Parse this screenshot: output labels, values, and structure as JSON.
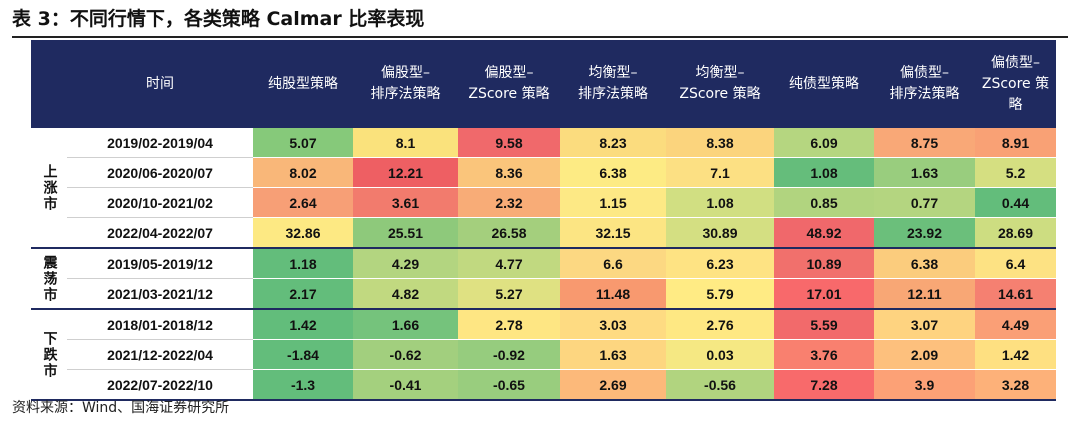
{
  "title": "表 3：不同行情下，各类策略 Calmar 比率表现",
  "source": "资料来源：Wind、国海证券研究所",
  "headers": [
    "时间",
    "纯股型策略",
    "偏股型–\n排序法策略",
    "偏股型–\nZScore 策略",
    "均衡型–\n排序法策略",
    "均衡型–\nZScore 策略",
    "纯债型策略",
    "偏债型–\n排序法策略",
    "偏债型–\nZScore 策略"
  ],
  "groups": [
    {
      "label": "上涨市",
      "rows": [
        {
          "period": "2019/02-2019/04",
          "values": [
            "5.07",
            "8.1",
            "9.58",
            "8.23",
            "8.38",
            "6.09",
            "8.75",
            "8.91"
          ]
        },
        {
          "period": "2020/06-2020/07",
          "values": [
            "8.02",
            "12.21",
            "8.36",
            "6.38",
            "7.1",
            "1.08",
            "1.63",
            "5.2"
          ]
        },
        {
          "period": "2020/10-2021/02",
          "values": [
            "2.64",
            "3.61",
            "2.32",
            "1.15",
            "1.08",
            "0.85",
            "0.77",
            "0.44"
          ]
        },
        {
          "period": "2022/04-2022/07",
          "values": [
            "32.86",
            "25.51",
            "26.58",
            "32.15",
            "30.89",
            "48.92",
            "23.92",
            "28.69"
          ]
        }
      ]
    },
    {
      "label": "震荡市",
      "rows": [
        {
          "period": "2019/05-2019/12",
          "values": [
            "1.18",
            "4.29",
            "4.77",
            "6.6",
            "6.23",
            "10.89",
            "6.38",
            "6.4"
          ]
        },
        {
          "period": "2021/03-2021/12",
          "values": [
            "2.17",
            "4.82",
            "5.27",
            "11.48",
            "5.79",
            "17.01",
            "12.11",
            "14.61"
          ]
        }
      ]
    },
    {
      "label": "下跌市",
      "rows": [
        {
          "period": "2018/01-2018/12",
          "values": [
            "1.42",
            "1.66",
            "2.78",
            "3.03",
            "2.76",
            "5.59",
            "3.07",
            "4.49"
          ]
        },
        {
          "period": "2021/12-2022/04",
          "values": [
            "-1.84",
            "-0.62",
            "-0.92",
            "1.63",
            "0.03",
            "3.76",
            "2.09",
            "1.42"
          ]
        },
        {
          "period": "2022/07-2022/10",
          "values": [
            "-1.3",
            "-0.41",
            "-0.65",
            "2.69",
            "-0.56",
            "7.28",
            "3.9",
            "3.28"
          ]
        }
      ]
    }
  ],
  "cell_colors": [
    [
      "#86c97a",
      "#fae27c",
      "#f0696b",
      "#fbdc7e",
      "#fbd47d",
      "#b5d680",
      "#f9a877",
      "#f9a175"
    ],
    [
      "#f9b779",
      "#ee5f63",
      "#fac57b",
      "#fdeb84",
      "#fce083",
      "#65bd7b",
      "#99cd7e",
      "#d5df81"
    ],
    [
      "#f79f76",
      "#f27b6d",
      "#f8ac77",
      "#fde985",
      "#d1df82",
      "#b1d47f",
      "#b4d580",
      "#63bd7b"
    ],
    [
      "#fde983",
      "#8ec97b",
      "#a4cf7d",
      "#fce583",
      "#d4df82",
      "#f0686b",
      "#6bbf7b",
      "#cddd81"
    ],
    [
      "#63bd7b",
      "#b3d580",
      "#c1d980",
      "#fcd882",
      "#fee383",
      "#f1706c",
      "#fbcc7d",
      "#fde283"
    ],
    [
      "#63bd7b",
      "#c1d980",
      "#dfe182",
      "#f8996f",
      "#ffeb84",
      "#f8696b",
      "#f8a775",
      "#f58071"
    ],
    [
      "#62bd7b",
      "#75c37c",
      "#fee683",
      "#fedb82",
      "#fee883",
      "#f26a6b",
      "#fed380",
      "#fa9f76"
    ],
    [
      "#63bd7b",
      "#a2cf7e",
      "#96cc7e",
      "#fdd680",
      "#f5e883",
      "#f9806f",
      "#fdc07d",
      "#fee081"
    ],
    [
      "#63bd7b",
      "#a4d07e",
      "#99cd7e",
      "#fcb97a",
      "#b1d47f",
      "#f86a6b",
      "#fca176",
      "#fdb179"
    ]
  ]
}
